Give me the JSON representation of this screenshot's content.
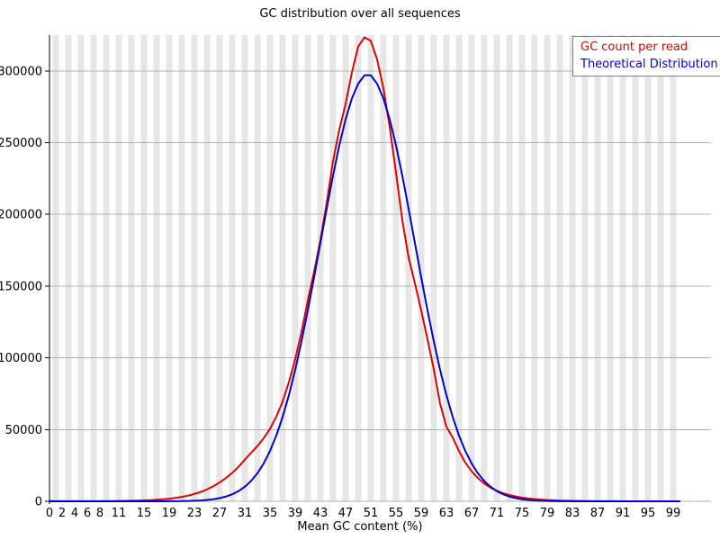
{
  "title": "GC distribution over all sequences",
  "colors": {
    "background": "#ffffff",
    "stripe": "#e6e6e6",
    "grid": "#b2b2b2",
    "axis": "#000000",
    "legend_border": "#808080"
  },
  "chart_data": {
    "type": "line",
    "title": "GC distribution over all sequences",
    "xlabel": "Mean GC content (%)",
    "ylabel": "",
    "xlim": [
      0,
      100
    ],
    "ylim": [
      0,
      325000
    ],
    "grid": "horizontal gridlines every 50000, vertical gray band at each odd GC percent",
    "legend_position": "top-right",
    "x_ticks": [
      0,
      2,
      4,
      6,
      8,
      11,
      15,
      19,
      23,
      27,
      31,
      35,
      39,
      43,
      47,
      51,
      55,
      59,
      63,
      67,
      71,
      75,
      79,
      83,
      87,
      91,
      95,
      99
    ],
    "y_ticks": [
      0,
      50000,
      100000,
      150000,
      200000,
      250000,
      300000
    ],
    "x": [
      0,
      1,
      2,
      3,
      4,
      5,
      6,
      7,
      8,
      9,
      10,
      11,
      12,
      13,
      14,
      15,
      16,
      17,
      18,
      19,
      20,
      21,
      22,
      23,
      24,
      25,
      26,
      27,
      28,
      29,
      30,
      31,
      32,
      33,
      34,
      35,
      36,
      37,
      38,
      39,
      40,
      41,
      42,
      43,
      44,
      45,
      46,
      47,
      48,
      49,
      50,
      51,
      52,
      53,
      54,
      55,
      56,
      57,
      58,
      59,
      60,
      61,
      62,
      63,
      64,
      65,
      66,
      67,
      68,
      69,
      70,
      71,
      72,
      73,
      74,
      75,
      76,
      77,
      78,
      79,
      80,
      81,
      82,
      83,
      84,
      85,
      86,
      87,
      88,
      89,
      90,
      91,
      92,
      93,
      94,
      95,
      96,
      97,
      98,
      99,
      100
    ],
    "series": [
      {
        "name": "GC count per read",
        "color": "#dd0000",
        "values": [
          260,
          60,
          45,
          40,
          45,
          55,
          65,
          80,
          100,
          130,
          170,
          220,
          290,
          380,
          490,
          630,
          820,
          1060,
          1380,
          1800,
          2350,
          3050,
          3950,
          5100,
          6500,
          8300,
          10500,
          13100,
          16200,
          19800,
          24000,
          29000,
          33800,
          38500,
          44000,
          50500,
          59000,
          69500,
          83000,
          99000,
          118000,
          140000,
          160000,
          182000,
          208000,
          237000,
          259000,
          277000,
          299000,
          317000,
          323500,
          321000,
          308000,
          288000,
          261000,
          229000,
          196000,
          170000,
          152000,
          133000,
          113000,
          92000,
          68000,
          52000,
          44500,
          35000,
          27000,
          21000,
          16200,
          12400,
          9600,
          7300,
          5600,
          4400,
          3400,
          2600,
          2000,
          1550,
          1200,
          900,
          680,
          510,
          390,
          300,
          230,
          175,
          135,
          105,
          80,
          62,
          48,
          38,
          30,
          24,
          19,
          15,
          12,
          10,
          8,
          7,
          6
        ]
      },
      {
        "name": "Theoretical Distribution",
        "color": "#0000cc",
        "values": [
          0,
          0,
          0,
          0,
          0,
          0,
          0,
          0,
          0,
          0,
          0,
          0,
          0,
          1,
          2,
          4,
          8,
          14,
          25,
          44,
          76,
          130,
          217,
          357,
          577,
          916,
          1435,
          2192,
          3297,
          4872,
          7088,
          10120,
          14170,
          19520,
          26400,
          35100,
          45800,
          58800,
          74000,
          91650,
          111500,
          133100,
          156200,
          180100,
          204000,
          227000,
          248100,
          266300,
          280900,
          291100,
          297000,
          297000,
          291100,
          280900,
          266300,
          248100,
          227000,
          204000,
          180100,
          156200,
          133100,
          111500,
          91650,
          74000,
          58800,
          45800,
          35100,
          26400,
          19520,
          14170,
          10120,
          7088,
          4872,
          3297,
          2192,
          1435,
          916,
          577,
          357,
          217,
          130,
          76,
          44,
          25,
          14,
          8,
          4,
          2,
          1,
          0,
          0,
          0,
          0,
          0,
          0,
          0,
          0,
          0,
          0,
          0,
          0
        ]
      }
    ]
  }
}
